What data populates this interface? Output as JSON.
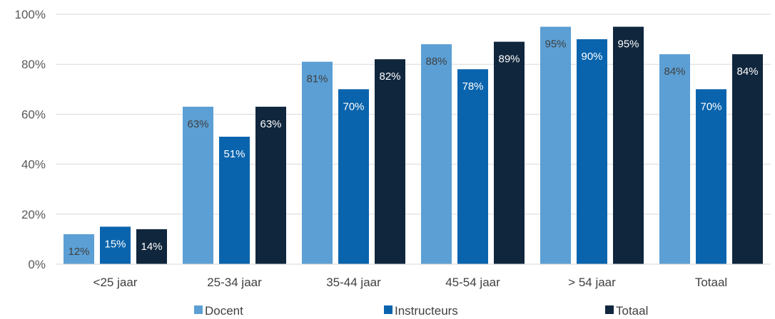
{
  "chart_data": {
    "type": "bar",
    "categories": [
      "<25 jaar",
      "25-34 jaar",
      "35-44 jaar",
      "45-54 jaar",
      "> 54 jaar",
      "Totaal"
    ],
    "series": [
      {
        "name": "Docent",
        "color": "#5b9fd4",
        "label_color": "#404040",
        "values": [
          12,
          63,
          81,
          88,
          95,
          84
        ]
      },
      {
        "name": "Instructeurs",
        "color": "#0a64ad",
        "label_color": "#ffffff",
        "values": [
          15,
          51,
          70,
          78,
          90,
          70
        ]
      },
      {
        "name": "Totaal",
        "color": "#10263d",
        "label_color": "#ffffff",
        "values": [
          14,
          63,
          82,
          89,
          95,
          84
        ]
      }
    ],
    "ylim": [
      0,
      100
    ],
    "yticks": [
      0,
      20,
      40,
      60,
      80,
      100
    ],
    "tick_suffix": "%",
    "grid": true,
    "legend_position": "bottom"
  }
}
